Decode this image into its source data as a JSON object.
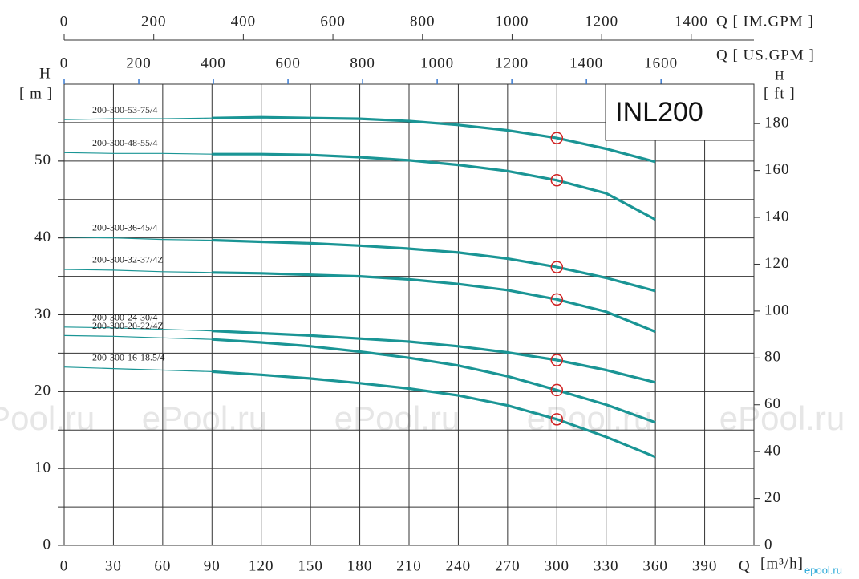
{
  "chart_data": {
    "type": "line",
    "title": "INL200",
    "x": [
      0,
      30,
      60,
      90,
      120,
      150,
      180,
      210,
      240,
      270,
      300,
      330,
      360
    ],
    "xlim": [
      0,
      420
    ],
    "xticks": [
      0,
      30,
      60,
      90,
      120,
      150,
      180,
      210,
      240,
      270,
      300,
      330,
      360,
      390
    ],
    "xlabel": "Q",
    "xunit": "[m³/h]",
    "ylim": [
      0,
      60
    ],
    "yticks": [
      0,
      10,
      20,
      30,
      40,
      50
    ],
    "ygrid": [
      5,
      10,
      15,
      20,
      25,
      30,
      35,
      40,
      45,
      50,
      55
    ],
    "ylabel": "H",
    "yunit": "[ m ]",
    "y2lim": [
      0,
      196.85
    ],
    "y2ticks": [
      0,
      20,
      40,
      60,
      80,
      100,
      120,
      140,
      160,
      180
    ],
    "y2label": "H",
    "y2unit": "[ ft ]",
    "x2lim": [
      0,
      1540
    ],
    "x2ticks": [
      0,
      200,
      400,
      600,
      800,
      1000,
      1200,
      1400
    ],
    "x2label": "Q [ IM.GPM ]",
    "x3lim": [
      0,
      1849
    ],
    "x3ticks": [
      0,
      200,
      400,
      600,
      800,
      1000,
      1200,
      1400,
      1600
    ],
    "x3label": "Q [ US.GPM ]",
    "grid": true,
    "duty_point_index": 10,
    "marker_color": "#d02020",
    "watermark": "ePool.ru",
    "footer_mark": "epool.ru",
    "series": [
      {
        "name": "200-300-53-75/4",
        "color": "#1a9595",
        "values": [
          55.4,
          55.5,
          55.5,
          55.6,
          55.7,
          55.6,
          55.5,
          55.2,
          54.7,
          54.0,
          53.0,
          51.6,
          49.9
        ]
      },
      {
        "name": "200-300-48-55/4",
        "color": "#1a9595",
        "values": [
          51.1,
          51.0,
          51.0,
          50.9,
          50.9,
          50.8,
          50.5,
          50.1,
          49.5,
          48.7,
          47.5,
          45.8,
          42.4
        ]
      },
      {
        "name": "200-300-36-45/4",
        "color": "#1a9595",
        "values": [
          40.1,
          40.0,
          39.8,
          39.7,
          39.5,
          39.3,
          39.0,
          38.6,
          38.1,
          37.3,
          36.2,
          34.8,
          33.1
        ]
      },
      {
        "name": "200-300-32-37/4Z",
        "color": "#1a9595",
        "values": [
          35.9,
          35.8,
          35.6,
          35.5,
          35.4,
          35.2,
          35.0,
          34.6,
          34.0,
          33.2,
          32.0,
          30.4,
          27.8
        ]
      },
      {
        "name": "200-300-24-30/4",
        "color": "#1a9595",
        "values": [
          28.4,
          28.3,
          28.1,
          27.9,
          27.6,
          27.3,
          26.9,
          26.5,
          25.9,
          25.1,
          24.1,
          22.8,
          21.2
        ]
      },
      {
        "name": "200-300-20-22/4Z",
        "color": "#1a9595",
        "values": [
          27.3,
          27.2,
          27.0,
          26.8,
          26.4,
          25.9,
          25.2,
          24.4,
          23.4,
          22.0,
          20.2,
          18.3,
          16.0
        ]
      },
      {
        "name": "200-300-16-18.5/4",
        "color": "#1a9595",
        "values": [
          23.2,
          23.0,
          22.8,
          22.6,
          22.2,
          21.7,
          21.1,
          20.4,
          19.5,
          18.2,
          16.4,
          14.1,
          11.5
        ]
      }
    ]
  }
}
